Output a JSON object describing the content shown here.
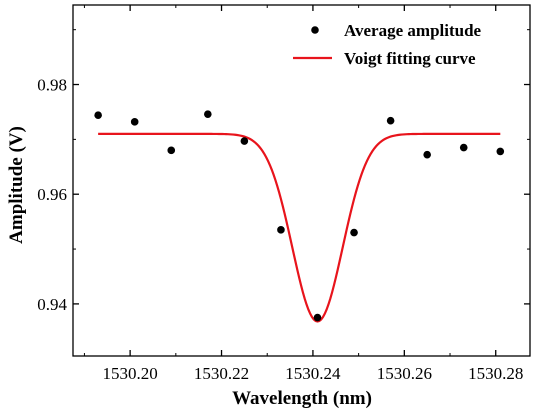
{
  "chart_data": {
    "type": "scatter",
    "xlabel": "Wavelength (nm)",
    "ylabel": "Amplitude (V)",
    "xlim": [
      1530.1875,
      1530.2875
    ],
    "ylim": [
      0.9305,
      0.9945
    ],
    "x_ticks": [
      1530.2,
      1530.22,
      1530.24,
      1530.26,
      1530.28
    ],
    "x_tick_labels": [
      "1530.20",
      "1530.22",
      "1530.24",
      "1530.26",
      "1530.28"
    ],
    "y_ticks": [
      0.94,
      0.96,
      0.98
    ],
    "y_tick_labels": [
      "0.94",
      "0.96",
      "0.98"
    ],
    "legend_position": "top-right",
    "series": [
      {
        "name": "Average amplitude",
        "type": "scatter",
        "color": "#000000",
        "x": [
          1530.193,
          1530.201,
          1530.209,
          1530.217,
          1530.225,
          1530.233,
          1530.241,
          1530.249,
          1530.257,
          1530.265,
          1530.273,
          1530.281
        ],
        "y": [
          0.9744,
          0.9732,
          0.968,
          0.9746,
          0.9697,
          0.9535,
          0.9375,
          0.953,
          0.9734,
          0.9672,
          0.9685,
          0.9678
        ]
      },
      {
        "name": "Voigt fitting curve",
        "type": "line",
        "color": "#e8141c",
        "baseline": 0.971,
        "minimum": 0.9368,
        "center": 1530.241,
        "x_range": [
          1530.193,
          1530.281
        ]
      }
    ]
  }
}
